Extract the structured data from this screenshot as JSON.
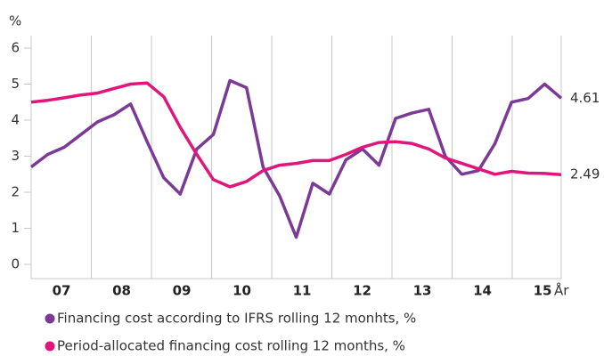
{
  "chart_data": {
    "type": "line",
    "y_axis_label": "%",
    "x_axis_label": "År",
    "year_labels": [
      "07",
      "08",
      "09",
      "10",
      "11",
      "12",
      "13",
      "14",
      "15"
    ],
    "categories": [
      null,
      null,
      null,
      null,
      null,
      null,
      null,
      null,
      null,
      null,
      null,
      null,
      null,
      null,
      null,
      null,
      null,
      null,
      null,
      null,
      null,
      null,
      null,
      null,
      null,
      null,
      null,
      null,
      null,
      null,
      null,
      null,
      null
    ],
    "series": [
      {
        "name": "Financing cost according to IFRS rolling 12 monhts, %",
        "color": "#7b3a96",
        "values": [
          2.7,
          3.05,
          3.25,
          3.6,
          3.95,
          4.15,
          4.45,
          3.4,
          2.4,
          1.95,
          3.2,
          3.6,
          5.1,
          4.9,
          2.7,
          1.9,
          0.75,
          2.25,
          1.95,
          2.9,
          3.2,
          2.75,
          4.05,
          4.2,
          4.3,
          3.0,
          2.5,
          2.6,
          3.35,
          4.5,
          4.6,
          5.0,
          4.61
        ]
      },
      {
        "name": "Period-allocated financing cost rolling 12 months, %",
        "color": "#e0167c",
        "values": [
          4.5,
          4.55,
          4.62,
          4.7,
          4.75,
          4.88,
          5.0,
          5.03,
          4.65,
          3.8,
          3.05,
          2.35,
          2.15,
          2.3,
          2.6,
          2.75,
          2.8,
          2.88,
          2.88,
          3.05,
          3.25,
          3.38,
          3.4,
          3.35,
          3.2,
          2.95,
          2.8,
          2.65,
          2.5,
          2.58,
          2.53,
          2.52,
          2.49
        ]
      }
    ],
    "ylim": [
      0,
      6
    ],
    "yticks": [
      0,
      1,
      2,
      3,
      4,
      5,
      6
    ]
  }
}
